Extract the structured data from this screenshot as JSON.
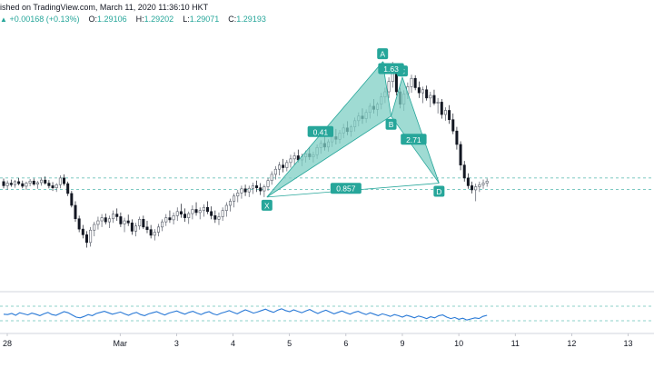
{
  "header": {
    "published_text": "ished on TradingView.com, March 11, 2020 11:36:10 HKT",
    "change_arrow": "▲",
    "change_text": "+0.00168 (+0.13%)",
    "open_label": "O:",
    "open_value": "1.29106",
    "high_label": "H:",
    "high_value": "1.29202",
    "low_label": "L:",
    "low_value": "1.29071",
    "close_label": "C:",
    "close_value": "1.29193"
  },
  "colors": {
    "up": "#26a69a",
    "down": "#131722",
    "pattern_fill": "#7fcfc4",
    "pattern_line": "#26a69a",
    "rsi_line": "#2979d6",
    "axis_text": "#131722"
  },
  "chart_data": {
    "type": "candlestick",
    "title": "",
    "x_ticks": [
      "28",
      "Mar",
      "3",
      "4",
      "5",
      "6",
      "9",
      "10",
      "11",
      "12",
      "13"
    ],
    "x_tick_positions": [
      0,
      2,
      3,
      4,
      5,
      6,
      7,
      8,
      9,
      10,
      11
    ],
    "price_range_est": [
      1.271,
      1.321
    ],
    "current_close": 1.29193,
    "horizontal_levels_est": [
      1.2925,
      1.2903
    ],
    "pattern": {
      "name": "harmonic",
      "points": [
        {
          "label": "X",
          "x": 4.6,
          "y": 1.2888
        },
        {
          "label": "A",
          "x": 6.65,
          "y": 1.315
        },
        {
          "label": "B",
          "x": 6.8,
          "y": 1.3045
        },
        {
          "label": "C",
          "x": 7.0,
          "y": 1.312
        },
        {
          "label": "D",
          "x": 7.65,
          "y": 1.2915
        }
      ],
      "ratios": [
        {
          "label": "0.41",
          "x": 5.55,
          "y": 1.3015
        },
        {
          "label": "1.63",
          "x": 6.8,
          "y": 1.3137
        },
        {
          "label": "2.71",
          "x": 7.2,
          "y": 1.3
        },
        {
          "label": "0.857",
          "x": 6.0,
          "y": 1.2905
        }
      ]
    },
    "candles_est": [
      [
        1.2918,
        1.2924,
        1.2905,
        1.291
      ],
      [
        1.291,
        1.292,
        1.2902,
        1.2915
      ],
      [
        1.2915,
        1.2922,
        1.2908,
        1.2912
      ],
      [
        1.2912,
        1.2921,
        1.2906,
        1.2918
      ],
      [
        1.2918,
        1.2925,
        1.2911,
        1.2914
      ],
      [
        1.2914,
        1.292,
        1.2905,
        1.2909
      ],
      [
        1.2909,
        1.2918,
        1.2902,
        1.2915
      ],
      [
        1.2915,
        1.2923,
        1.2909,
        1.2919
      ],
      [
        1.2919,
        1.2924,
        1.291,
        1.2913
      ],
      [
        1.2913,
        1.2919,
        1.2904,
        1.2916
      ],
      [
        1.2916,
        1.2926,
        1.291,
        1.2921
      ],
      [
        1.2921,
        1.2928,
        1.2912,
        1.2915
      ],
      [
        1.2915,
        1.2921,
        1.2905,
        1.291
      ],
      [
        1.291,
        1.2917,
        1.29,
        1.2906
      ],
      [
        1.2906,
        1.2915,
        1.2898,
        1.2912
      ],
      [
        1.2912,
        1.293,
        1.2905,
        1.2925
      ],
      [
        1.2925,
        1.2932,
        1.291,
        1.2914
      ],
      [
        1.2914,
        1.2918,
        1.289,
        1.2895
      ],
      [
        1.2895,
        1.29,
        1.2868,
        1.2872
      ],
      [
        1.2872,
        1.288,
        1.284,
        1.2846
      ],
      [
        1.2846,
        1.2852,
        1.282,
        1.2826
      ],
      [
        1.2826,
        1.2834,
        1.2808,
        1.2815
      ],
      [
        1.2815,
        1.2822,
        1.279,
        1.28
      ],
      [
        1.28,
        1.283,
        1.2792,
        1.2824
      ],
      [
        1.2824,
        1.284,
        1.2812,
        1.2835
      ],
      [
        1.2835,
        1.285,
        1.2825,
        1.2842
      ],
      [
        1.2842,
        1.2855,
        1.283,
        1.2848
      ],
      [
        1.2848,
        1.2856,
        1.2835,
        1.284
      ],
      [
        1.284,
        1.2852,
        1.2828,
        1.2846
      ],
      [
        1.2846,
        1.2862,
        1.2838,
        1.2855
      ],
      [
        1.2855,
        1.2866,
        1.2842,
        1.285
      ],
      [
        1.285,
        1.2858,
        1.283,
        1.2836
      ],
      [
        1.2836,
        1.2848,
        1.282,
        1.2842
      ],
      [
        1.2842,
        1.2854,
        1.2832,
        1.2838
      ],
      [
        1.2838,
        1.2845,
        1.2815,
        1.2822
      ],
      [
        1.2822,
        1.2838,
        1.2812,
        1.2832
      ],
      [
        1.2832,
        1.285,
        1.2825,
        1.2845
      ],
      [
        1.2845,
        1.2852,
        1.2826,
        1.283
      ],
      [
        1.283,
        1.2842,
        1.2818,
        1.2825
      ],
      [
        1.2825,
        1.2834,
        1.2808,
        1.2814
      ],
      [
        1.2814,
        1.2826,
        1.2804,
        1.282
      ],
      [
        1.282,
        1.2836,
        1.2812,
        1.283
      ],
      [
        1.283,
        1.2845,
        1.2822,
        1.284
      ],
      [
        1.284,
        1.2855,
        1.2832,
        1.2848
      ],
      [
        1.2848,
        1.2862,
        1.2838,
        1.2844
      ],
      [
        1.2844,
        1.2858,
        1.2835,
        1.2852
      ],
      [
        1.2852,
        1.2868,
        1.2842,
        1.286
      ],
      [
        1.286,
        1.2875,
        1.2848,
        1.2855
      ],
      [
        1.2855,
        1.2866,
        1.284,
        1.2848
      ],
      [
        1.2848,
        1.286,
        1.2836,
        1.2856
      ],
      [
        1.2856,
        1.2872,
        1.2845,
        1.2864
      ],
      [
        1.2864,
        1.2878,
        1.2852,
        1.2858
      ],
      [
        1.2858,
        1.2868,
        1.2845,
        1.2862
      ],
      [
        1.2862,
        1.2874,
        1.285,
        1.2868
      ],
      [
        1.2868,
        1.288,
        1.2855,
        1.286
      ],
      [
        1.286,
        1.287,
        1.2845,
        1.2852
      ],
      [
        1.2852,
        1.2862,
        1.2838,
        1.2845
      ],
      [
        1.2845,
        1.2858,
        1.2834,
        1.285
      ],
      [
        1.285,
        1.2868,
        1.2842,
        1.2862
      ],
      [
        1.2862,
        1.2878,
        1.285,
        1.2872
      ],
      [
        1.2872,
        1.2885,
        1.286,
        1.288
      ],
      [
        1.288,
        1.2895,
        1.2868,
        1.289
      ],
      [
        1.289,
        1.2902,
        1.2878,
        1.2896
      ],
      [
        1.2896,
        1.291,
        1.2885,
        1.2904
      ],
      [
        1.2904,
        1.2912,
        1.289,
        1.2898
      ],
      [
        1.2898,
        1.291,
        1.2888,
        1.2905
      ],
      [
        1.2905,
        1.2916,
        1.2894,
        1.291
      ],
      [
        1.291,
        1.292,
        1.2898,
        1.2906
      ],
      [
        1.2906,
        1.2915,
        1.2892,
        1.29
      ],
      [
        1.29,
        1.2912,
        1.2888,
        1.2908
      ],
      [
        1.2908,
        1.2925,
        1.29,
        1.292
      ],
      [
        1.292,
        1.2938,
        1.2912,
        1.2932
      ],
      [
        1.2932,
        1.2948,
        1.2922,
        1.2942
      ],
      [
        1.2942,
        1.2956,
        1.293,
        1.295
      ],
      [
        1.295,
        1.2962,
        1.2936,
        1.2945
      ],
      [
        1.2945,
        1.296,
        1.2938,
        1.2955
      ],
      [
        1.2955,
        1.297,
        1.2945,
        1.2962
      ],
      [
        1.2962,
        1.2975,
        1.295,
        1.2968
      ],
      [
        1.2968,
        1.298,
        1.2955,
        1.296
      ],
      [
        1.296,
        1.2972,
        1.2948,
        1.2966
      ],
      [
        1.2966,
        1.2978,
        1.2955,
        1.2972
      ],
      [
        1.2972,
        1.2985,
        1.296,
        1.2966
      ],
      [
        1.2966,
        1.2976,
        1.2955,
        1.297
      ],
      [
        1.297,
        1.299,
        1.2962,
        1.2984
      ],
      [
        1.2984,
        1.2998,
        1.2972,
        1.2992
      ],
      [
        1.2992,
        1.3005,
        1.2978,
        1.2985
      ],
      [
        1.2985,
        1.3,
        1.2976,
        1.2995
      ],
      [
        1.2995,
        1.3012,
        1.2985,
        1.3005
      ],
      [
        1.3005,
        1.302,
        1.299,
        1.3
      ],
      [
        1.3,
        1.3018,
        1.2992,
        1.3012
      ],
      [
        1.3012,
        1.303,
        1.3002,
        1.3022
      ],
      [
        1.3022,
        1.3035,
        1.3008,
        1.3015
      ],
      [
        1.3015,
        1.3028,
        1.3005,
        1.3024
      ],
      [
        1.3024,
        1.3042,
        1.3015,
        1.3036
      ],
      [
        1.3036,
        1.3052,
        1.3025,
        1.3045
      ],
      [
        1.3045,
        1.306,
        1.303,
        1.304
      ],
      [
        1.304,
        1.3058,
        1.3032,
        1.3052
      ],
      [
        1.3052,
        1.307,
        1.304,
        1.3064
      ],
      [
        1.3064,
        1.3078,
        1.305,
        1.3058
      ],
      [
        1.3058,
        1.3072,
        1.3045,
        1.3068
      ],
      [
        1.3068,
        1.309,
        1.3058,
        1.3082
      ],
      [
        1.3082,
        1.31,
        1.307,
        1.3092
      ],
      [
        1.3092,
        1.312,
        1.308,
        1.3112
      ],
      [
        1.3112,
        1.315,
        1.31,
        1.314
      ],
      [
        1.314,
        1.3146,
        1.3085,
        1.3092
      ],
      [
        1.3092,
        1.31,
        1.306,
        1.3068
      ],
      [
        1.3068,
        1.3095,
        1.3055,
        1.3088
      ],
      [
        1.3088,
        1.311,
        1.3078,
        1.3102
      ],
      [
        1.3102,
        1.3125,
        1.309,
        1.3118
      ],
      [
        1.3118,
        1.3124,
        1.3095,
        1.31
      ],
      [
        1.31,
        1.3112,
        1.308,
        1.309
      ],
      [
        1.309,
        1.3102,
        1.307,
        1.3096
      ],
      [
        1.3096,
        1.3104,
        1.3075,
        1.308
      ],
      [
        1.308,
        1.3092,
        1.3062,
        1.3085
      ],
      [
        1.3085,
        1.3096,
        1.3066,
        1.307
      ],
      [
        1.307,
        1.308,
        1.305,
        1.3072
      ],
      [
        1.3072,
        1.3078,
        1.304,
        1.3048
      ],
      [
        1.3048,
        1.3062,
        1.3036,
        1.3056
      ],
      [
        1.3056,
        1.3066,
        1.303,
        1.3038
      ],
      [
        1.3038,
        1.305,
        1.301,
        1.3016
      ],
      [
        1.3016,
        1.3024,
        1.298,
        1.299
      ],
      [
        1.299,
        1.2996,
        1.294,
        1.295
      ],
      [
        1.295,
        1.2958,
        1.2918,
        1.2925
      ],
      [
        1.2925,
        1.2934,
        1.2904,
        1.291
      ],
      [
        1.291,
        1.2918,
        1.2895,
        1.2902
      ],
      [
        1.2902,
        1.2914,
        1.288,
        1.2908
      ],
      [
        1.2908,
        1.2918,
        1.2898,
        1.2912
      ],
      [
        1.2912,
        1.2922,
        1.2904,
        1.2915
      ],
      [
        1.2915,
        1.2924,
        1.2908,
        1.2919
      ]
    ],
    "rsi_levels": [
      70,
      30
    ],
    "rsi_range": [
      0,
      100
    ],
    "rsi_values_est": [
      48,
      47,
      50,
      45,
      52,
      49,
      46,
      51,
      48,
      44,
      49,
      53,
      47,
      45,
      50,
      55,
      52,
      46,
      40,
      38,
      42,
      47,
      44,
      50,
      53,
      56,
      52,
      48,
      51,
      54,
      49,
      45,
      50,
      53,
      47,
      44,
      49,
      52,
      55,
      50,
      46,
      51,
      54,
      57,
      52,
      48,
      53,
      56,
      51,
      47,
      52,
      55,
      49,
      46,
      51,
      54,
      58,
      53,
      49,
      55,
      60,
      56,
      51,
      54,
      58,
      62,
      57,
      53,
      59,
      63,
      58,
      55,
      60,
      56,
      52,
      57,
      61,
      55,
      50,
      55,
      59,
      54,
      49,
      53,
      57,
      52,
      48,
      53,
      56,
      51,
      47,
      52,
      48,
      44,
      49,
      46,
      42,
      47,
      44,
      40,
      45,
      42,
      38,
      43,
      40,
      36,
      41,
      38,
      44,
      46,
      40,
      36,
      39,
      34,
      37,
      32,
      35,
      38,
      36,
      42,
      45
    ]
  }
}
